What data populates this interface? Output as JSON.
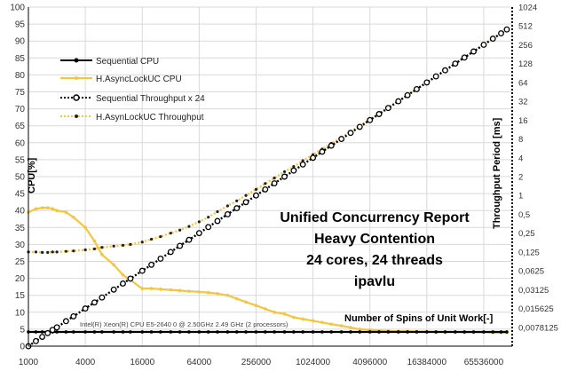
{
  "chart_data": {
    "type": "line",
    "x_scale": "log2",
    "x": [
      1000,
      1200,
      1400,
      1600,
      1800,
      2000,
      2500,
      3000,
      4000,
      5000,
      6000,
      8000,
      10000,
      12000,
      16000,
      20000,
      25000,
      32000,
      40000,
      50000,
      64000,
      80000,
      100000,
      128000,
      160000,
      200000,
      256000,
      320000,
      400000,
      512000,
      640000,
      800000,
      1024000,
      1280000,
      1600000,
      2048000,
      2560000,
      3200000,
      4096000,
      5120000,
      6400000,
      8192000,
      10240000,
      12800000,
      16384000,
      20480000,
      25600000,
      32768000,
      40960000,
      51200000,
      65536000,
      81920000,
      100000000,
      115000000
    ],
    "xlim": [
      1000,
      131072000
    ],
    "xticks": [
      "1000",
      "4000",
      "16000",
      "64000",
      "256000",
      "1024000",
      "4096000",
      "16384000",
      "65536000"
    ],
    "ylim": [
      0,
      100
    ],
    "yticks": [
      "0",
      "5",
      "10",
      "15",
      "20",
      "25",
      "30",
      "35",
      "40",
      "45",
      "50",
      "55",
      "60",
      "65",
      "70",
      "75",
      "80",
      "85",
      "90",
      "95",
      "100"
    ],
    "y2_scale": "log2",
    "y2lim": [
      0.00390625,
      1024
    ],
    "y2ticks": [
      "0,0078125",
      "0,015625",
      "0,03125",
      "0,0625",
      "0,125",
      "0,25",
      "0,5",
      "1",
      "2",
      "4",
      "8",
      "16",
      "32",
      "64",
      "128",
      "256",
      "512",
      "1024"
    ],
    "ylabel": "CPU[%]",
    "y2label": "Throughput Period [ms]",
    "xlabel": "Number of Spins of Unit Work[-]",
    "annotation_lines": [
      "Unified Concurrency Report",
      "Heavy Contention",
      "24 cores, 24 threads",
      "ipavlu"
    ],
    "cpu_note": "Intel(R) Xeon(R) CPU E5-2640 0 @ 2.50GHz   2.49 GHz  (2 processors)",
    "legend_position": "top-left",
    "grid": true,
    "series": [
      {
        "name": "Sequential CPU",
        "axis": "left",
        "color": "#000000",
        "style": "solid-marker",
        "values": [
          4.2,
          4.2,
          4.2,
          4.2,
          4.2,
          4.2,
          4.2,
          4.2,
          4.2,
          4.2,
          4.2,
          4.2,
          4.2,
          4.2,
          4.2,
          4.2,
          4.2,
          4.2,
          4.2,
          4.2,
          4.2,
          4.2,
          4.2,
          4.2,
          4.2,
          4.2,
          4.2,
          4.2,
          4.2,
          4.2,
          4.2,
          4.2,
          4.2,
          4.2,
          4.2,
          4.2,
          4.2,
          4.2,
          4.2,
          4.2,
          4.2,
          4.2,
          4.2,
          4.2,
          4.2,
          4.2,
          4.2,
          4.2,
          4.2,
          4.2,
          4.2,
          4.2,
          4.2,
          4.2
        ]
      },
      {
        "name": "H.AsyncLockUC CPU",
        "axis": "left",
        "color": "#f5c542",
        "style": "solid-marker",
        "values": [
          39.5,
          40.5,
          40.8,
          40.8,
          40.5,
          40,
          39.5,
          38,
          35,
          31,
          27,
          24,
          21,
          19.5,
          17,
          17,
          16.8,
          16.6,
          16.4,
          16.2,
          16,
          15.8,
          15.5,
          15,
          14,
          13,
          12,
          11,
          10,
          9.5,
          8.5,
          8,
          7.5,
          7,
          6.5,
          6,
          5.5,
          5,
          4.8,
          4.6,
          4.5,
          4.4,
          4.4,
          4.3,
          4.3,
          4.2,
          4.2,
          4.2,
          4.1,
          4.1,
          4.1,
          4,
          4,
          4
        ]
      },
      {
        "name": "Sequential Throughput x 24",
        "axis": "right",
        "color": "#000000",
        "style": "dotted-hollow",
        "values": [
          0.0039,
          0.0047,
          0.0055,
          0.0063,
          0.0071,
          0.0078,
          0.0098,
          0.0117,
          0.0156,
          0.0195,
          0.0234,
          0.0313,
          0.0391,
          0.0469,
          0.0625,
          0.0781,
          0.0977,
          0.125,
          0.1563,
          0.1953,
          0.25,
          0.3125,
          0.3906,
          0.5,
          0.625,
          0.7813,
          1,
          1.25,
          1.5625,
          2,
          2.5,
          3.125,
          4,
          5,
          6.25,
          8,
          10,
          12.5,
          16,
          20,
          25,
          32,
          40,
          50,
          64,
          80,
          100,
          128,
          160,
          200,
          256,
          320,
          390,
          450
        ]
      },
      {
        "name": "H.AsynLockUC Throughput",
        "axis": "right",
        "color": "#f5c542",
        "style": "dotted-dark-marker",
        "values": [
          0.125,
          0.125,
          0.123,
          0.123,
          0.125,
          0.125,
          0.128,
          0.13,
          0.135,
          0.14,
          0.148,
          0.155,
          0.16,
          0.165,
          0.18,
          0.2,
          0.22,
          0.25,
          0.28,
          0.32,
          0.38,
          0.45,
          0.55,
          0.68,
          0.82,
          1,
          1.25,
          1.55,
          1.9,
          2.4,
          2.9,
          3.6,
          4.5,
          5.5,
          6.8,
          8.5,
          10.5,
          13,
          16.5,
          20.5,
          25.5,
          32.5,
          40,
          50,
          64,
          80,
          100,
          128,
          160,
          200,
          256,
          320,
          390,
          450
        ]
      }
    ]
  }
}
